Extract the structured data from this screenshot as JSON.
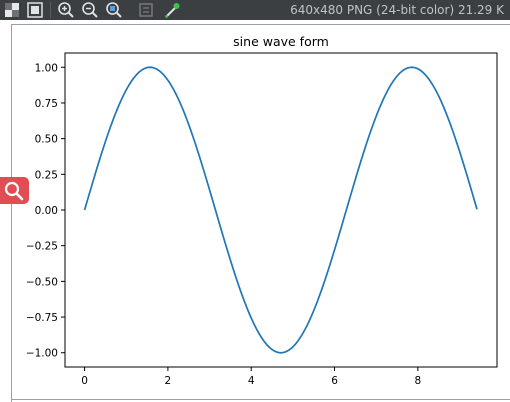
{
  "toolbar": {
    "icons": [
      "checkerboard-icon",
      "fit-window-icon",
      "zoom-in-icon",
      "zoom-out-icon",
      "actual-size-icon",
      "rotate-icon",
      "color-picker-icon"
    ],
    "info_text": "640x480 PNG (24-bit color) 21.29 K"
  },
  "side_button": {
    "icon": "search-icon"
  },
  "chart_data": {
    "type": "line",
    "title": "sine wave  form",
    "xlabel": "",
    "ylabel": "",
    "function": "sin(x)",
    "xlim": [
      -0.47,
      9.9
    ],
    "ylim": [
      -1.1,
      1.1
    ],
    "x_range": [
      0,
      9.42
    ],
    "xticks": [
      0,
      2,
      4,
      6,
      8
    ],
    "yticks": [
      1.0,
      0.75,
      0.5,
      0.25,
      0.0,
      -0.25,
      -0.5,
      -0.75,
      -1.0
    ],
    "xtick_labels": [
      "0",
      "2",
      "4",
      "6",
      "8"
    ],
    "ytick_labels": [
      "1.00",
      "0.75",
      "0.50",
      "0.25",
      "0.00",
      "−0.25",
      "−0.50",
      "−0.75",
      "−1.00"
    ],
    "series": [
      {
        "color": "#1f77b4",
        "x": [
          0,
          0.5,
          1.0,
          1.5708,
          2.0,
          2.5,
          3.0,
          3.1416,
          3.5,
          4.0,
          4.5,
          4.7124,
          5.0,
          5.5,
          6.0,
          6.2832,
          6.5,
          7.0,
          7.5,
          7.854,
          8.0,
          8.5,
          9.0,
          9.42
        ],
        "y": [
          0,
          0.479,
          0.841,
          1.0,
          0.909,
          0.598,
          0.141,
          0.0,
          -0.351,
          -0.757,
          -0.978,
          -1.0,
          -0.959,
          -0.706,
          -0.279,
          0.0,
          0.215,
          0.657,
          0.938,
          1.0,
          0.989,
          0.798,
          0.412,
          0.0
        ]
      }
    ],
    "grid": false,
    "legend": "none"
  }
}
